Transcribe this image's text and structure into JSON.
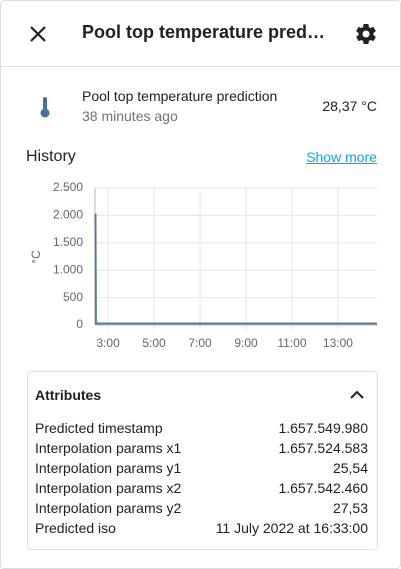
{
  "header": {
    "title": "Pool top temperature prediction"
  },
  "entity": {
    "name": "Pool top temperature prediction",
    "last_changed": "38 minutes ago",
    "state": "28,37 °C"
  },
  "history": {
    "title": "History",
    "link": "Show more"
  },
  "chart_data": {
    "type": "line",
    "ylabel": "°C",
    "color": "#5b7a99",
    "grid": true,
    "x": [
      2.45,
      2.47,
      14.7
    ],
    "values": [
      2030,
      27,
      27
    ],
    "xlim": [
      2.43,
      14.7
    ],
    "xticks": [
      {
        "value": 3,
        "label": "3:00"
      },
      {
        "value": 5,
        "label": "5:00"
      },
      {
        "value": 7,
        "label": "7:00"
      },
      {
        "value": 9,
        "label": "9:00"
      },
      {
        "value": 11,
        "label": "11:00"
      },
      {
        "value": 13,
        "label": "13:00"
      }
    ],
    "ylim": [
      0,
      2500
    ],
    "yticks": [
      0,
      {
        "value": 500,
        "label": "500"
      },
      {
        "value": 1000,
        "label": "1.000"
      },
      {
        "value": 1500,
        "label": "1.500"
      },
      {
        "value": 2000,
        "label": "2.000"
      },
      {
        "value": 2500,
        "label": "2.500"
      }
    ]
  },
  "attributes": {
    "title": "Attributes",
    "rows": [
      {
        "name": "Predicted timestamp",
        "value": "1.657.549.980"
      },
      {
        "name": "Interpolation params x1",
        "value": "1.657.524.583"
      },
      {
        "name": "Interpolation params y1",
        "value": "25,54"
      },
      {
        "name": "Interpolation params x2",
        "value": "1.657.542.460"
      },
      {
        "name": "Interpolation params y2",
        "value": "27,53"
      },
      {
        "name": "Predicted iso",
        "value": "11 July 2022 at 16:33:00"
      }
    ]
  }
}
